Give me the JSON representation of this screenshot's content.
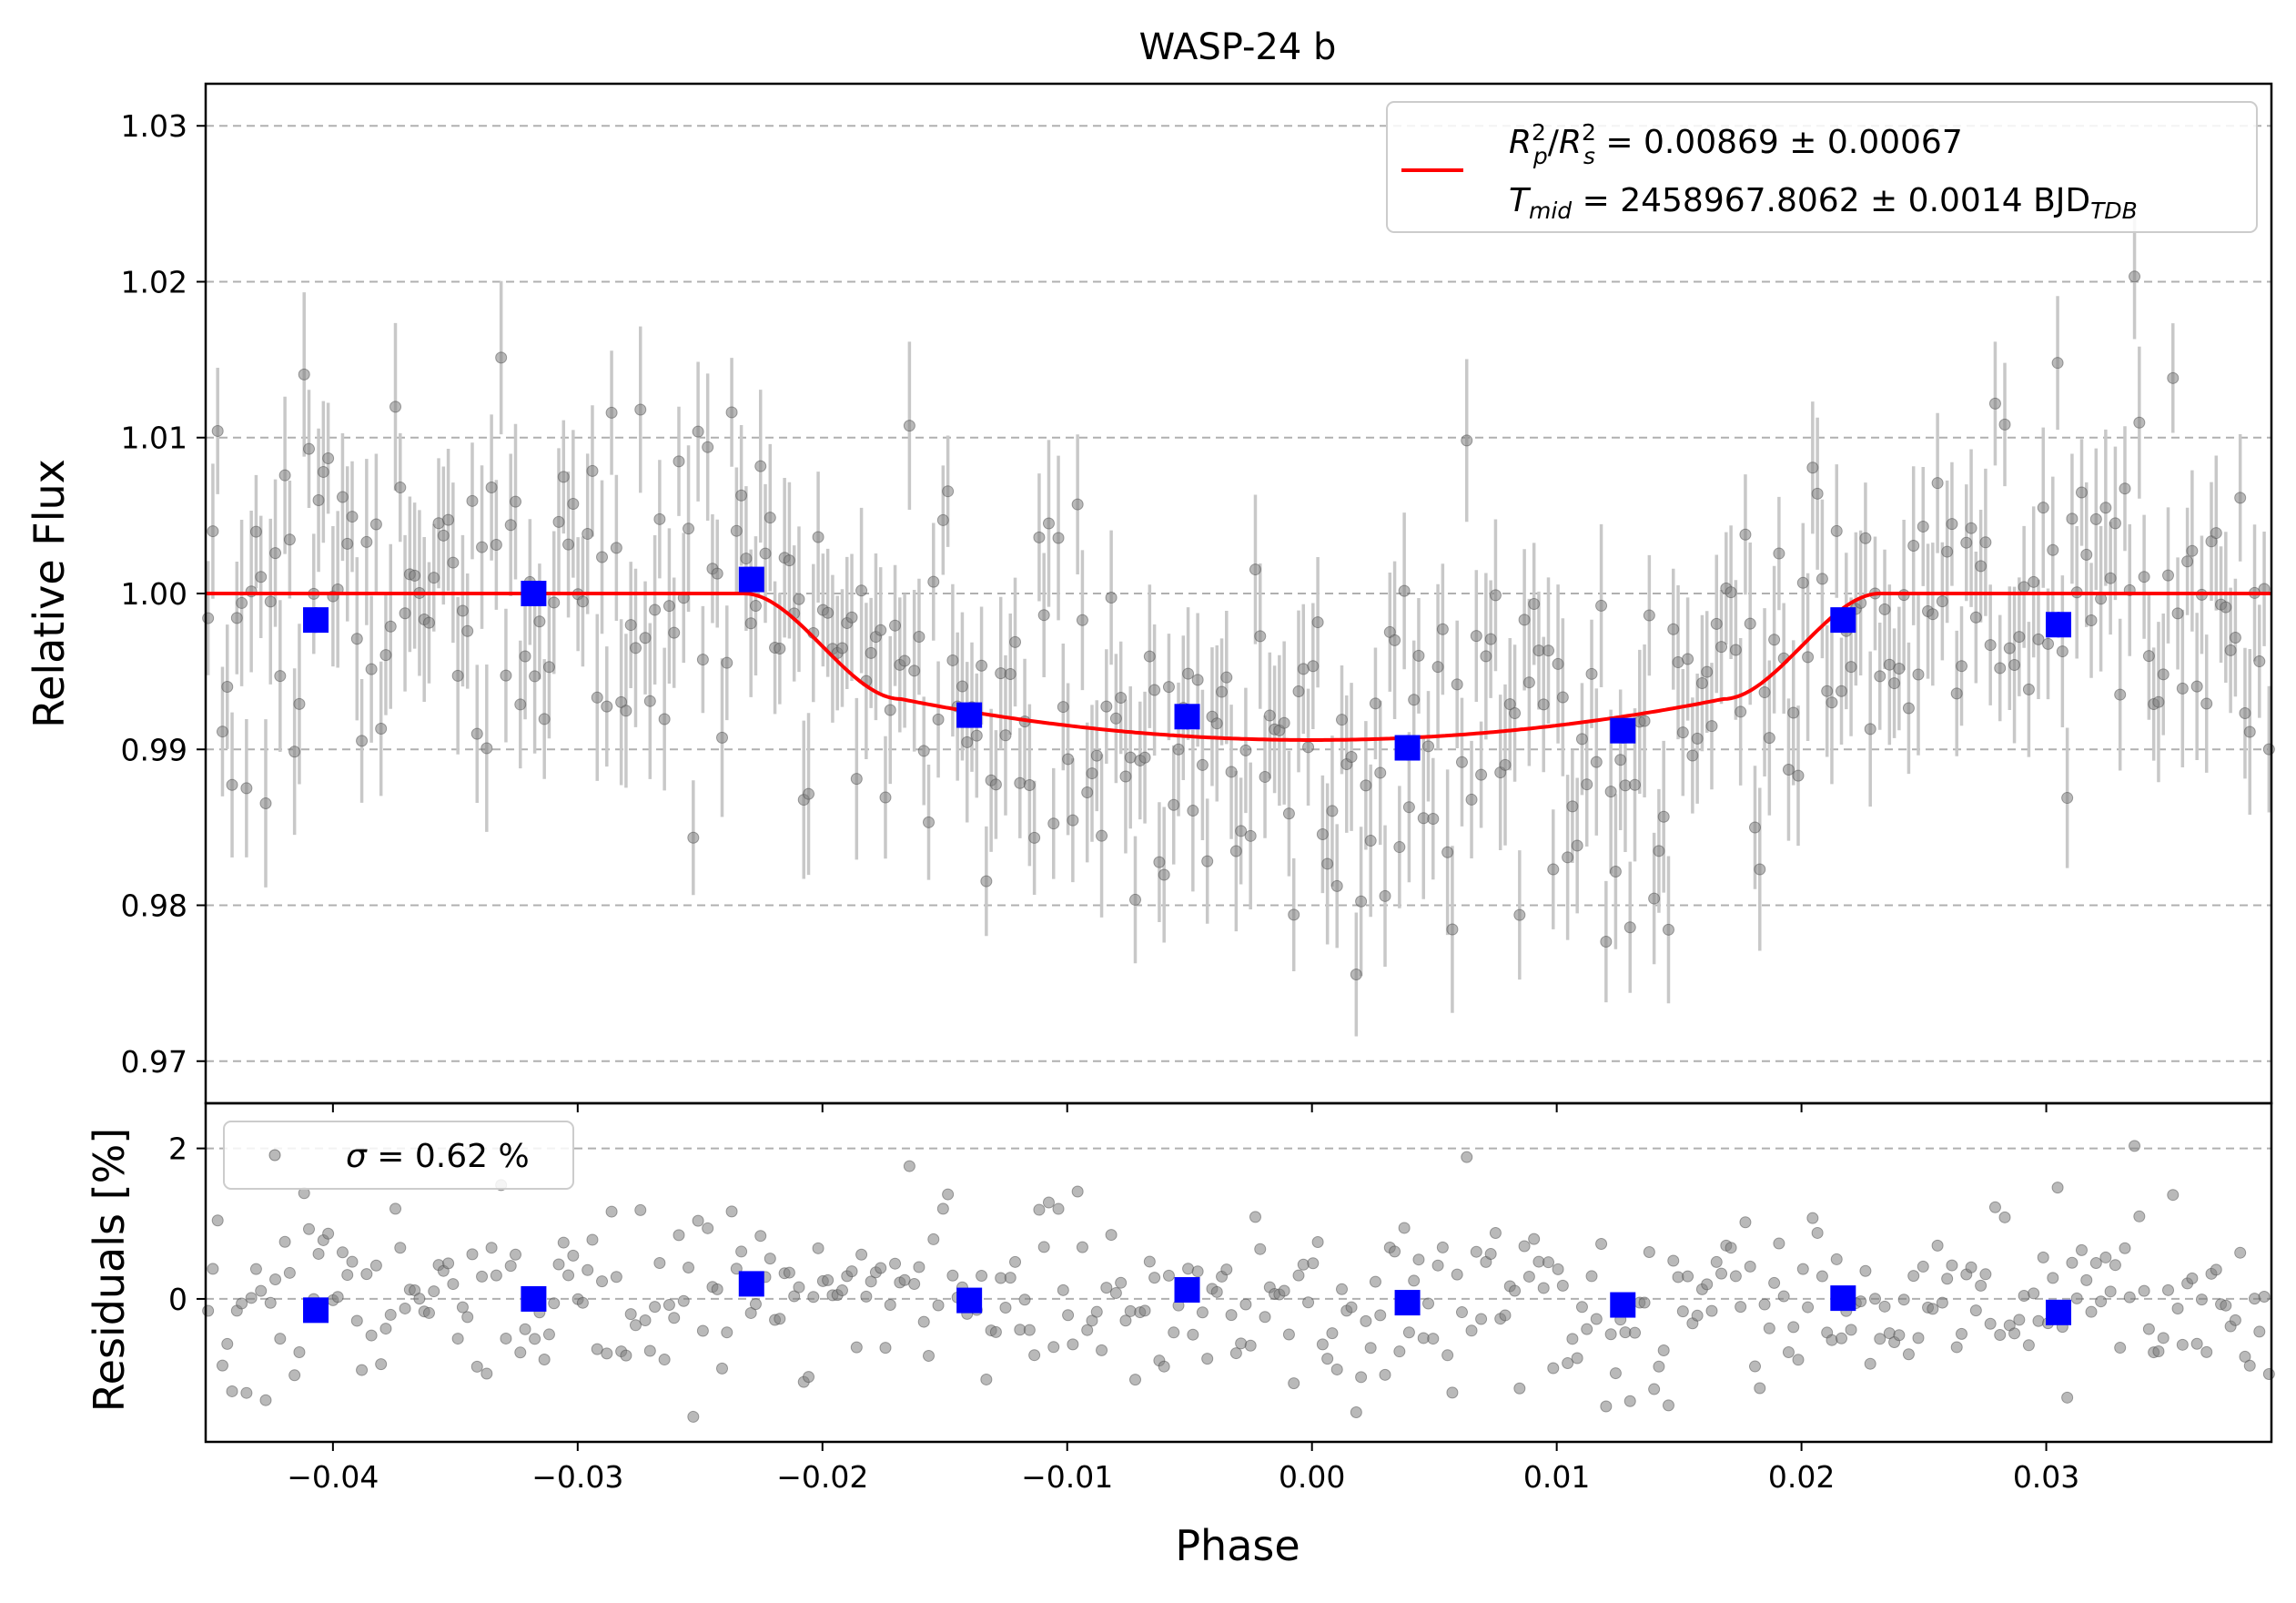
{
  "chart_data": [
    {
      "panel": "main",
      "type": "scatter",
      "title": "WASP-24 b",
      "xlabel": "",
      "ylabel": "Relative Flux",
      "xlim": [
        -0.0452,
        0.0392
      ],
      "ylim": [
        0.9673,
        1.0327
      ],
      "xticks": [
        -0.04,
        -0.03,
        -0.02,
        -0.01,
        0.0,
        0.01,
        0.02,
        0.03
      ],
      "yticks": [
        0.97,
        0.98,
        0.99,
        1.0,
        1.01,
        1.02,
        1.03
      ],
      "ytick_labels": [
        "0.97",
        "0.98",
        "0.99",
        "1.00",
        "1.01",
        "1.02",
        "1.03"
      ],
      "grid": "horizontal dashed",
      "legend": {
        "placement": "upper-right",
        "line1": "R²p/R²s = 0.00869 ± 0.00067",
        "line2": "Tmid = 2458967.8062 ± 0.0014 BJDTDB"
      },
      "model": {
        "name": "transit model",
        "color": "#ff0000",
        "depth": 0.00869,
        "baseline": 1.0,
        "contact_points": {
          "t1": -0.0232,
          "t2": -0.0168,
          "t3": 0.0168,
          "t4": 0.0232
        },
        "limb_darkening_bottom": 0.9906
      },
      "raw_data_style": {
        "color": "#808080",
        "errorbar_color": "#c8c8c8",
        "typical_error": 0.004,
        "n_points": 430
      },
      "binned": {
        "color": "#0000ff",
        "x": [
          -0.0407,
          -0.0318,
          -0.0229,
          -0.014,
          -0.0051,
          0.0039,
          0.0127,
          0.0217,
          0.0305
        ],
        "y": [
          0.9983,
          1.0,
          1.0009,
          0.9922,
          0.9921,
          0.9901,
          0.9912,
          0.9983,
          0.998
        ]
      }
    },
    {
      "panel": "residuals",
      "type": "scatter",
      "xlabel": "Phase",
      "ylabel": "Residuals [%]",
      "xlim": [
        -0.0452,
        0.0392
      ],
      "ylim": [
        -1.9,
        2.6
      ],
      "xticks": [
        -0.04,
        -0.03,
        -0.02,
        -0.01,
        0.0,
        0.01,
        0.02,
        0.03
      ],
      "xtick_labels": [
        "−0.04",
        "−0.03",
        "−0.02",
        "−0.01",
        "0.00",
        "0.01",
        "0.02",
        "0.03"
      ],
      "yticks": [
        0,
        2
      ],
      "ytick_labels": [
        "0",
        "2"
      ],
      "grid": "horizontal dashed",
      "legend": {
        "placement": "upper-left",
        "label": "σ = 0.62 %"
      },
      "sigma_percent": 0.62,
      "binned": {
        "color": "#0000ff",
        "x": [
          -0.0407,
          -0.0318,
          -0.0229,
          -0.014,
          -0.0051,
          0.0039,
          0.0127,
          0.0217,
          0.0305
        ],
        "y": [
          -0.15,
          0.0,
          0.2,
          -0.02,
          0.12,
          -0.05,
          -0.08,
          0.01,
          -0.18
        ]
      }
    }
  ]
}
